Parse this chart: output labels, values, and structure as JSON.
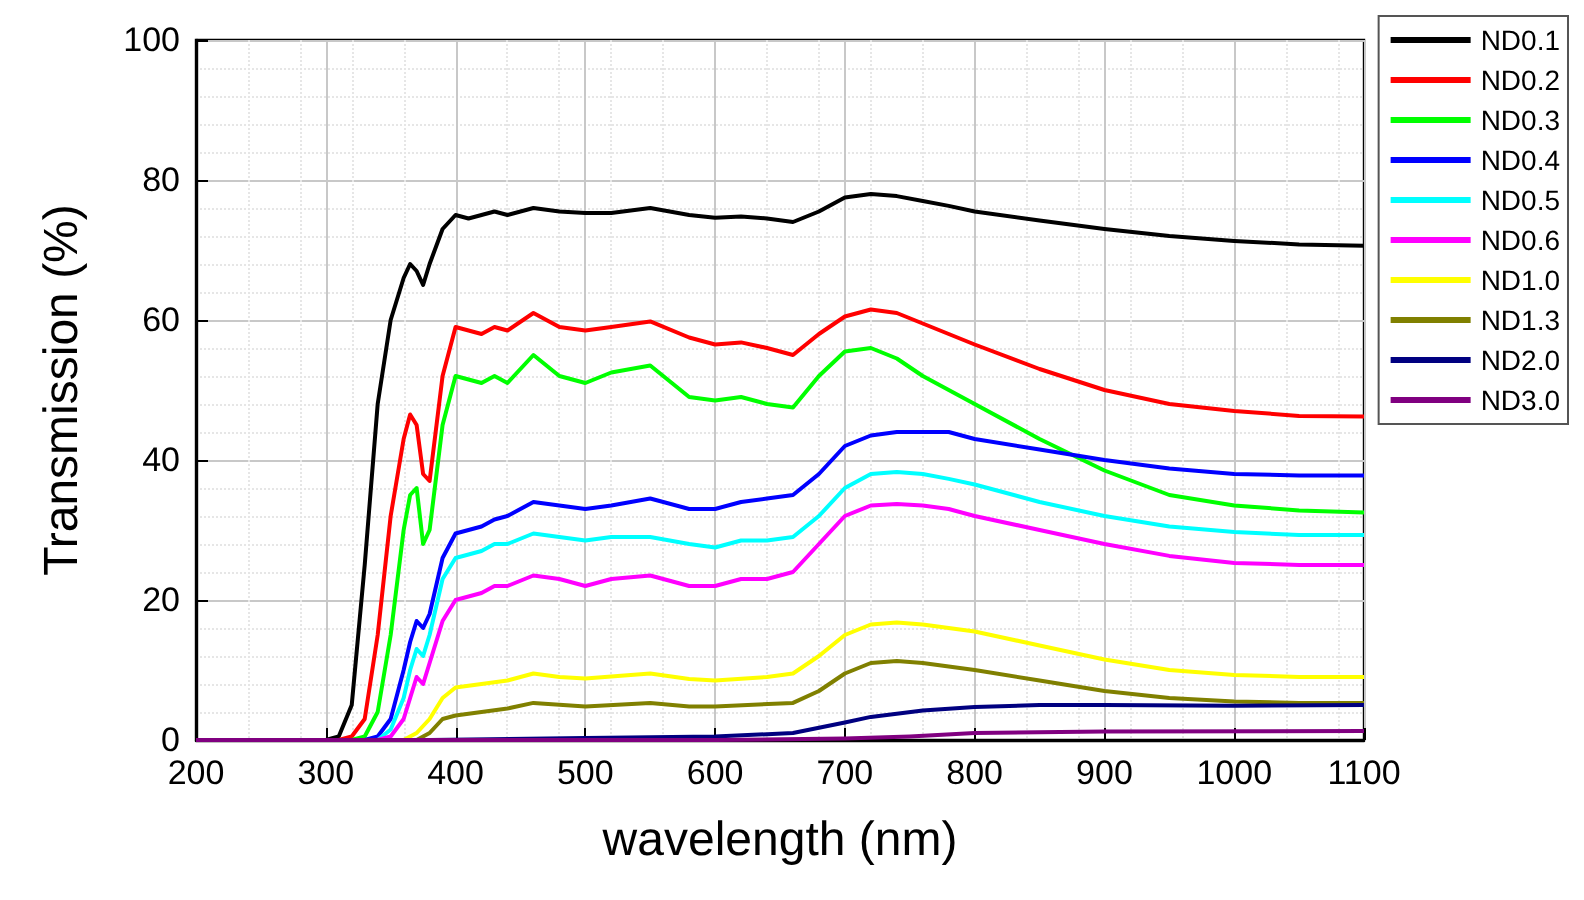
{
  "chart_data": {
    "type": "line",
    "xlabel": "wavelength (nm)",
    "ylabel": "Transmission (%)",
    "xlim": [
      200,
      1100
    ],
    "xticks": [
      200,
      300,
      400,
      500,
      600,
      700,
      800,
      900,
      1000,
      1100
    ],
    "ylim": [
      0,
      100
    ],
    "yticks": [
      0,
      20,
      40,
      60,
      80,
      100
    ],
    "grid": true,
    "legend": "top right",
    "marker": "none",
    "line_style": "solid",
    "series": [
      {
        "name": "ND0.1",
        "color": "#000000",
        "x": [
          200,
          300,
          310,
          320,
          330,
          340,
          350,
          360,
          365,
          370,
          375,
          380,
          390,
          400,
          410,
          420,
          430,
          440,
          460,
          480,
          500,
          520,
          550,
          580,
          600,
          620,
          640,
          660,
          680,
          700,
          720,
          740,
          760,
          780,
          800,
          850,
          900,
          950,
          1000,
          1050,
          1100
        ],
        "values": [
          0,
          0,
          0.5,
          5,
          25,
          48,
          60,
          66,
          68,
          67,
          65,
          68,
          73,
          75,
          74.5,
          75,
          75.5,
          75,
          76,
          75.5,
          75.3,
          75.3,
          76,
          75,
          74.6,
          74.8,
          74.5,
          74,
          75.5,
          77.5,
          78,
          77.7,
          77,
          76.3,
          75.5,
          74.2,
          73,
          72,
          71.3,
          70.8,
          70.6
        ]
      },
      {
        "name": "ND0.2",
        "color": "#ff0000",
        "x": [
          200,
          310,
          320,
          330,
          340,
          350,
          360,
          365,
          370,
          375,
          380,
          390,
          400,
          410,
          420,
          430,
          440,
          460,
          480,
          500,
          520,
          550,
          580,
          600,
          620,
          640,
          660,
          680,
          700,
          720,
          740,
          760,
          780,
          800,
          850,
          900,
          950,
          1000,
          1050,
          1100
        ],
        "values": [
          0,
          0,
          0.5,
          3,
          15,
          32,
          43,
          46.5,
          45,
          38,
          37,
          52,
          59,
          58.5,
          58,
          59,
          58.5,
          61,
          59,
          58.5,
          59,
          59.8,
          57.5,
          56.5,
          56.8,
          56,
          55,
          58,
          60.5,
          61.5,
          61,
          59.5,
          58,
          56.5,
          53,
          50,
          48,
          47,
          46.3,
          46.2
        ]
      },
      {
        "name": "ND0.3",
        "color": "#00ff00",
        "x": [
          200,
          320,
          330,
          340,
          350,
          360,
          365,
          370,
          375,
          380,
          390,
          400,
          410,
          420,
          430,
          440,
          460,
          480,
          500,
          520,
          550,
          580,
          600,
          620,
          640,
          660,
          680,
          700,
          720,
          740,
          760,
          780,
          800,
          850,
          900,
          950,
          1000,
          1050,
          1100
        ],
        "values": [
          0,
          0,
          0.5,
          4,
          15,
          30,
          35,
          36,
          28,
          30,
          45,
          52,
          51.5,
          51,
          52,
          51,
          55,
          52,
          51,
          52.5,
          53.5,
          49,
          48.5,
          49,
          48,
          47.5,
          52,
          55.5,
          56,
          54.5,
          52,
          50,
          48,
          43,
          38.5,
          35,
          33.5,
          32.8,
          32.5
        ]
      },
      {
        "name": "ND0.4",
        "color": "#0000ff",
        "x": [
          200,
          330,
          340,
          350,
          360,
          365,
          370,
          375,
          380,
          390,
          400,
          410,
          420,
          430,
          440,
          460,
          480,
          500,
          520,
          550,
          580,
          600,
          620,
          640,
          660,
          680,
          700,
          720,
          740,
          760,
          780,
          800,
          850,
          900,
          950,
          1000,
          1050,
          1100
        ],
        "values": [
          0,
          0,
          0.5,
          3,
          10,
          14,
          17,
          16,
          18,
          26,
          29.5,
          30,
          30.5,
          31.5,
          32,
          34,
          33.5,
          33,
          33.5,
          34.5,
          33,
          33,
          34,
          34.5,
          35,
          38,
          42,
          43.5,
          44,
          44,
          44,
          43,
          41.5,
          40,
          38.8,
          38,
          37.8,
          37.8
        ]
      },
      {
        "name": "ND0.5",
        "color": "#00ffff",
        "x": [
          200,
          340,
          350,
          360,
          365,
          370,
          375,
          380,
          390,
          400,
          410,
          420,
          430,
          440,
          460,
          480,
          500,
          520,
          550,
          580,
          600,
          620,
          640,
          660,
          680,
          700,
          720,
          740,
          760,
          780,
          800,
          850,
          900,
          950,
          1000,
          1050,
          1100
        ],
        "values": [
          0,
          0,
          1.5,
          6,
          10,
          13,
          12,
          15,
          23,
          26,
          26.5,
          27,
          28,
          28,
          29.5,
          29,
          28.5,
          29,
          29,
          28,
          27.5,
          28.5,
          28.5,
          29,
          32,
          36,
          38,
          38.3,
          38,
          37.3,
          36.5,
          34,
          32,
          30.5,
          29.7,
          29.3,
          29.3
        ]
      },
      {
        "name": "ND0.6",
        "color": "#ff00ff",
        "x": [
          200,
          340,
          350,
          360,
          365,
          370,
          375,
          380,
          390,
          400,
          410,
          420,
          430,
          440,
          460,
          480,
          500,
          520,
          550,
          580,
          600,
          620,
          640,
          660,
          680,
          700,
          720,
          740,
          760,
          780,
          800,
          850,
          900,
          950,
          1000,
          1050,
          1100
        ],
        "values": [
          0,
          0,
          0.5,
          3,
          6,
          9,
          8,
          11,
          17,
          20,
          20.5,
          21,
          22,
          22,
          23.5,
          23,
          22,
          23,
          23.5,
          22,
          22,
          23,
          23,
          24,
          28,
          32,
          33.5,
          33.7,
          33.5,
          33,
          32,
          30,
          28,
          26.3,
          25.3,
          25,
          25
        ]
      },
      {
        "name": "ND1.0",
        "color": "#ffff00",
        "x": [
          200,
          360,
          370,
          380,
          390,
          400,
          420,
          440,
          460,
          480,
          500,
          550,
          580,
          600,
          640,
          660,
          680,
          700,
          720,
          740,
          760,
          800,
          850,
          900,
          950,
          1000,
          1050,
          1100
        ],
        "values": [
          0,
          0,
          1,
          3,
          6,
          7.5,
          8,
          8.5,
          9.5,
          9,
          8.8,
          9.5,
          8.7,
          8.5,
          9,
          9.5,
          12,
          15,
          16.5,
          16.8,
          16.5,
          15.5,
          13.5,
          11.5,
          10,
          9.3,
          9,
          9
        ]
      },
      {
        "name": "ND1.3",
        "color": "#808000",
        "x": [
          200,
          370,
          380,
          390,
          400,
          420,
          440,
          460,
          500,
          550,
          580,
          600,
          660,
          680,
          700,
          720,
          740,
          760,
          800,
          850,
          900,
          950,
          1000,
          1050,
          1100
        ],
        "values": [
          0,
          0,
          1,
          3,
          3.5,
          4,
          4.5,
          5.3,
          4.8,
          5.3,
          4.8,
          4.8,
          5.3,
          7,
          9.5,
          11,
          11.3,
          11,
          10,
          8.5,
          7,
          6,
          5.5,
          5.3,
          5.3
        ]
      },
      {
        "name": "ND2.0",
        "color": "#000080",
        "x": [
          200,
          380,
          500,
          600,
          660,
          700,
          720,
          760,
          800,
          850,
          900,
          1000,
          1100
        ],
        "values": [
          0,
          0,
          0.3,
          0.5,
          1,
          2.5,
          3.3,
          4.2,
          4.7,
          5,
          5,
          4.9,
          5
        ]
      },
      {
        "name": "ND3.0",
        "color": "#800080",
        "x": [
          200,
          600,
          700,
          750,
          800,
          900,
          1100
        ],
        "values": [
          0,
          0,
          0.2,
          0.5,
          1,
          1.2,
          1.3
        ]
      }
    ]
  }
}
